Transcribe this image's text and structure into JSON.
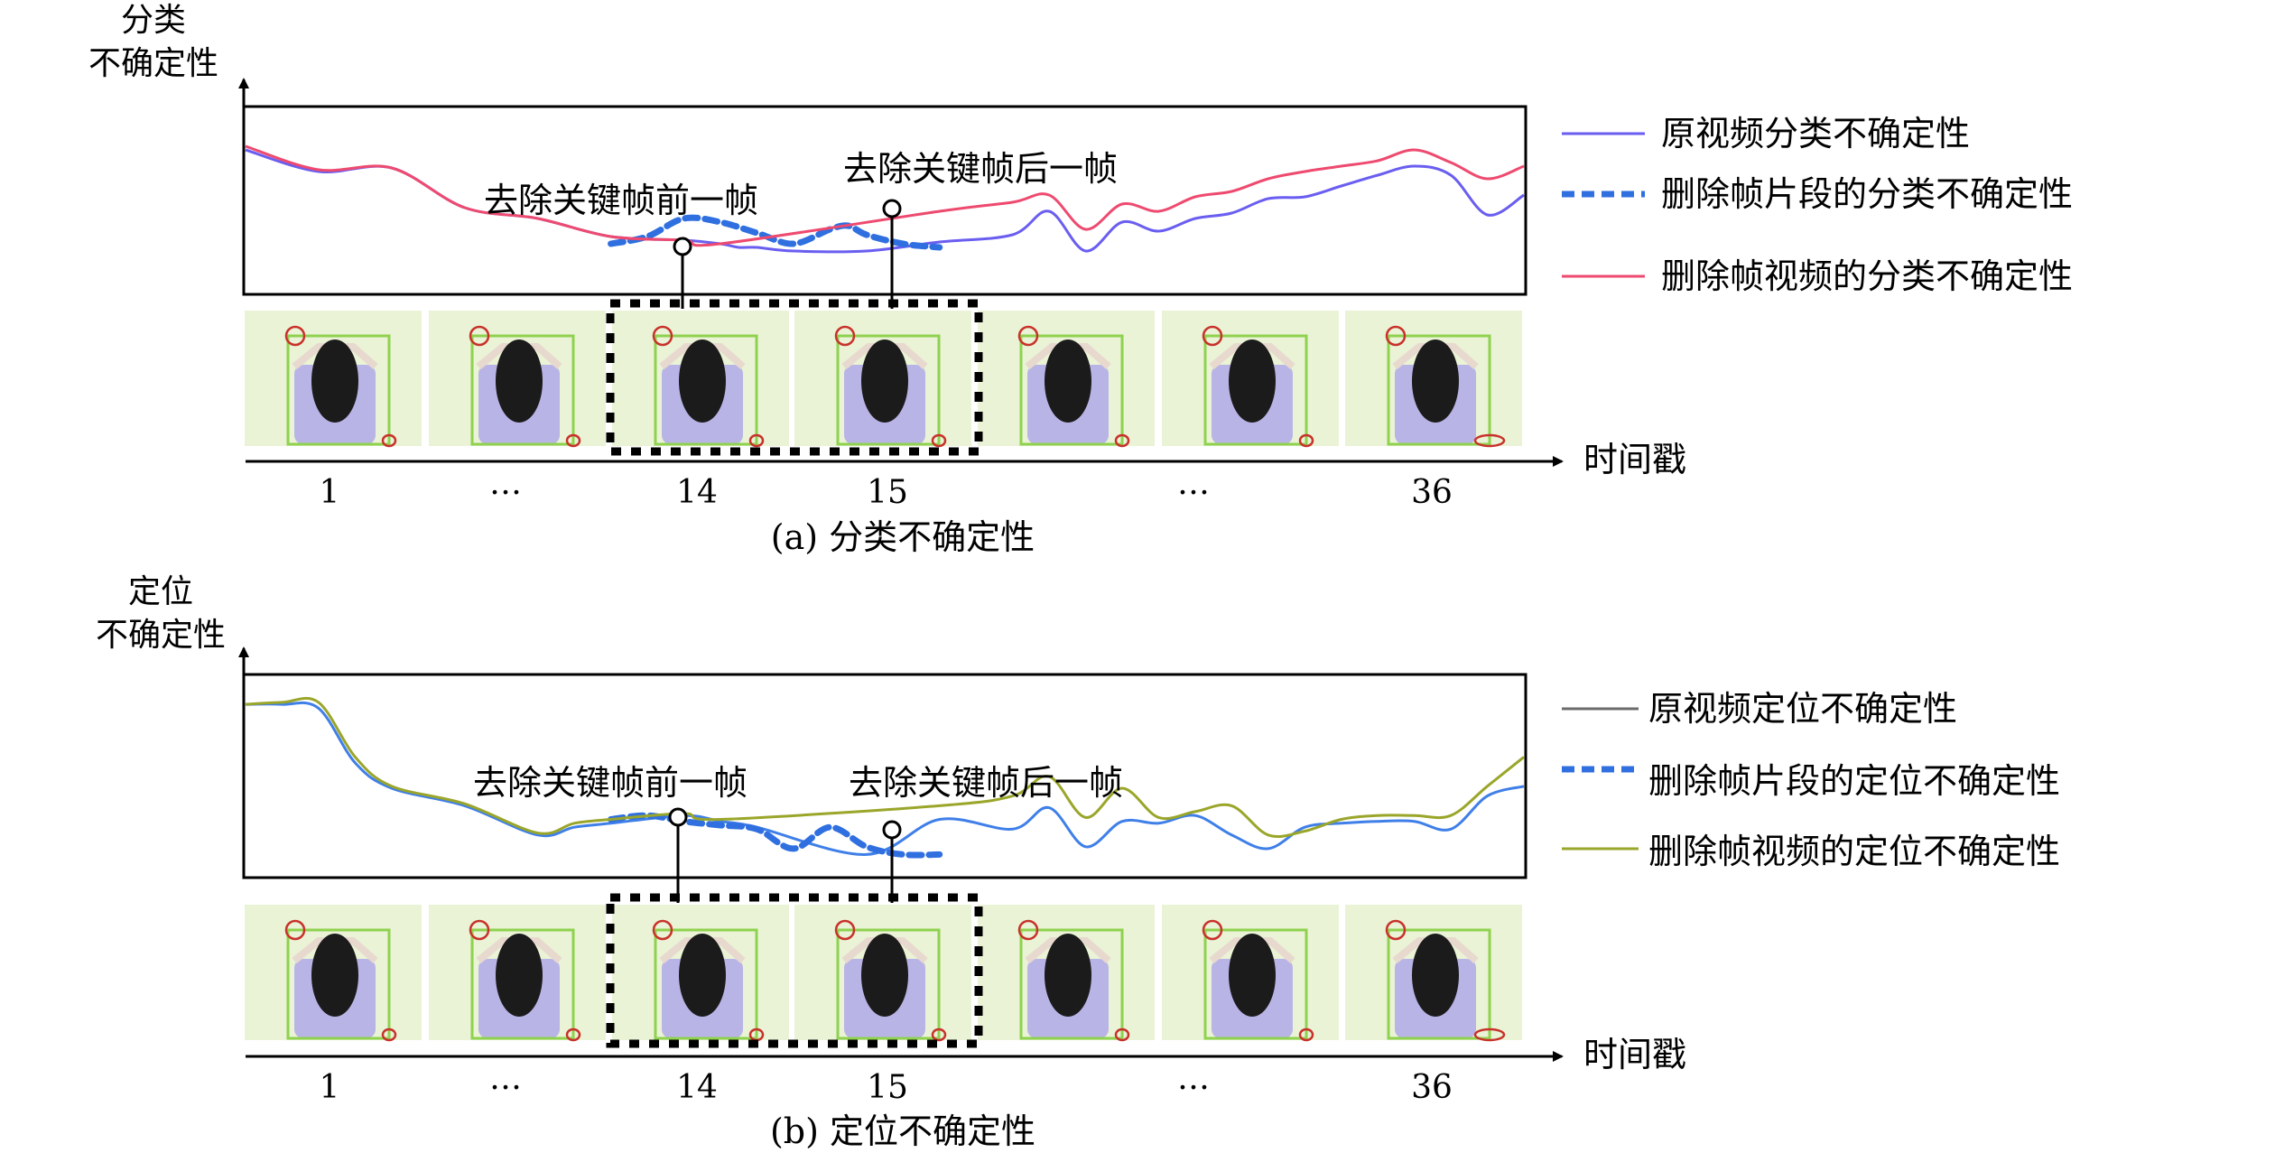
{
  "colors": {
    "original_cls": "#6a5ef0",
    "segment": "#2f6fe0",
    "deleted_cls": "#ee4a6f",
    "original_loc": "#3f7fe8",
    "deleted_loc": "#9aa62a",
    "legend_original_loc": "#6b6b6b",
    "axis": "#000000",
    "frame_box": "#8fd24f",
    "frame_bg": "#eaf3d6"
  },
  "chart_data": [
    {
      "type": "line",
      "panel_id": "a",
      "ylabel": [
        "分类",
        "不确定性"
      ],
      "xlabel": "时间戳",
      "caption": "(a) 分类不确定性",
      "frame_ticks": [
        "1",
        "…",
        "14",
        "15",
        "…",
        "36"
      ],
      "x_range": [
        1,
        36
      ],
      "y_range": [
        0,
        1
      ],
      "grid": false,
      "legend_position": "right",
      "annotations": [
        {
          "text": "去除关键帧前一帧",
          "x": 14
        },
        {
          "text": "去除关键帧后一帧",
          "x": 15
        }
      ],
      "legend": [
        {
          "label": "原视频分类不确定性",
          "style": "solid",
          "color_key": "original_cls"
        },
        {
          "label": "删除帧片段的分类不确定性",
          "style": "dashed",
          "color_key": "segment"
        },
        {
          "label": "删除帧视频的分类不确定性",
          "style": "solid",
          "color_key": "deleted_cls"
        }
      ],
      "series": [
        {
          "name": "原视频分类不确定性",
          "color_key": "original_cls",
          "style": "solid",
          "x": [
            1,
            3,
            5,
            7,
            9,
            11,
            13,
            14,
            14.5,
            15,
            16,
            18,
            20,
            22,
            23,
            24,
            25,
            26,
            27,
            28,
            29,
            30,
            31,
            32,
            33,
            34,
            35,
            36
          ],
          "y": [
            0.78,
            0.66,
            0.68,
            0.46,
            0.4,
            0.3,
            0.28,
            0.26,
            0.24,
            0.24,
            0.22,
            0.22,
            0.27,
            0.31,
            0.44,
            0.22,
            0.38,
            0.33,
            0.4,
            0.43,
            0.51,
            0.52,
            0.58,
            0.64,
            0.69,
            0.64,
            0.42,
            0.53
          ]
        },
        {
          "name": "删除帧片段的分类不确定性",
          "color_key": "segment",
          "style": "dashed",
          "x": [
            11,
            12,
            13,
            14,
            15,
            16,
            17,
            17.5,
            18,
            19,
            20
          ],
          "y": [
            0.26,
            0.3,
            0.4,
            0.38,
            0.32,
            0.26,
            0.34,
            0.36,
            0.31,
            0.26,
            0.24
          ]
        },
        {
          "name": "删除帧视频的分类不确定性",
          "color_key": "deleted_cls",
          "style": "solid",
          "x": [
            1,
            3,
            5,
            7,
            9,
            11,
            13,
            14,
            20,
            22,
            23,
            24,
            25,
            26,
            27,
            28,
            29,
            30,
            31,
            32,
            33,
            34,
            35,
            36
          ],
          "y": [
            0.8,
            0.67,
            0.68,
            0.46,
            0.4,
            0.3,
            0.28,
            0.26,
            0.44,
            0.49,
            0.53,
            0.34,
            0.48,
            0.44,
            0.52,
            0.55,
            0.62,
            0.66,
            0.69,
            0.72,
            0.78,
            0.71,
            0.62,
            0.69
          ]
        }
      ]
    },
    {
      "type": "line",
      "panel_id": "b",
      "ylabel": [
        "定位",
        "不确定性"
      ],
      "xlabel": "时间戳",
      "caption": "(b) 定位不确定性",
      "frame_ticks": [
        "1",
        "…",
        "14",
        "15",
        "…",
        "36"
      ],
      "x_range": [
        1,
        36
      ],
      "y_range": [
        0,
        1
      ],
      "grid": false,
      "legend_position": "right",
      "annotations": [
        {
          "text": "去除关键帧前一帧",
          "x": 14
        },
        {
          "text": "去除关键帧后一帧",
          "x": 15
        }
      ],
      "legend": [
        {
          "label": "原视频定位不确定性",
          "style": "solid",
          "color_key": "legend_original_loc"
        },
        {
          "label": "删除帧片段的定位不确定性",
          "style": "dashed",
          "color_key": "segment"
        },
        {
          "label": "删除帧视频的定位不确定性",
          "style": "solid",
          "color_key": "deleted_loc"
        }
      ],
      "series": [
        {
          "name": "原视频定位不确定性",
          "color_key": "original_loc",
          "style": "solid",
          "x": [
            1,
            2,
            3,
            4,
            5,
            7,
            9,
            10,
            11,
            13,
            14,
            15,
            18,
            20,
            22,
            23,
            24,
            25,
            26,
            27,
            28,
            29,
            30,
            31,
            32,
            33,
            34,
            35,
            36
          ],
          "y": [
            0.87,
            0.87,
            0.85,
            0.57,
            0.44,
            0.35,
            0.2,
            0.24,
            0.26,
            0.3,
            0.27,
            0.24,
            0.1,
            0.28,
            0.23,
            0.34,
            0.14,
            0.27,
            0.26,
            0.3,
            0.2,
            0.13,
            0.24,
            0.26,
            0.27,
            0.27,
            0.23,
            0.4,
            0.45
          ]
        },
        {
          "name": "删除帧片段的定位不确定性",
          "color_key": "segment",
          "style": "dashed",
          "x": [
            11,
            12,
            13,
            14,
            15,
            16,
            17,
            18,
            19,
            20
          ],
          "y": [
            0.28,
            0.3,
            0.27,
            0.25,
            0.23,
            0.13,
            0.24,
            0.14,
            0.1,
            0.1
          ]
        },
        {
          "name": "删除帧视频的定位不确定性",
          "color_key": "deleted_loc",
          "style": "solid",
          "x": [
            1,
            2,
            3,
            4,
            5,
            7,
            9,
            10,
            11,
            13,
            14,
            20,
            22,
            23,
            24,
            25,
            26,
            27,
            28,
            29,
            30,
            31,
            32,
            33,
            34,
            35,
            36
          ],
          "y": [
            0.87,
            0.88,
            0.88,
            0.6,
            0.45,
            0.36,
            0.21,
            0.26,
            0.28,
            0.31,
            0.28,
            0.35,
            0.4,
            0.5,
            0.29,
            0.44,
            0.29,
            0.32,
            0.35,
            0.2,
            0.22,
            0.28,
            0.3,
            0.3,
            0.3,
            0.45,
            0.6
          ]
        }
      ]
    }
  ]
}
